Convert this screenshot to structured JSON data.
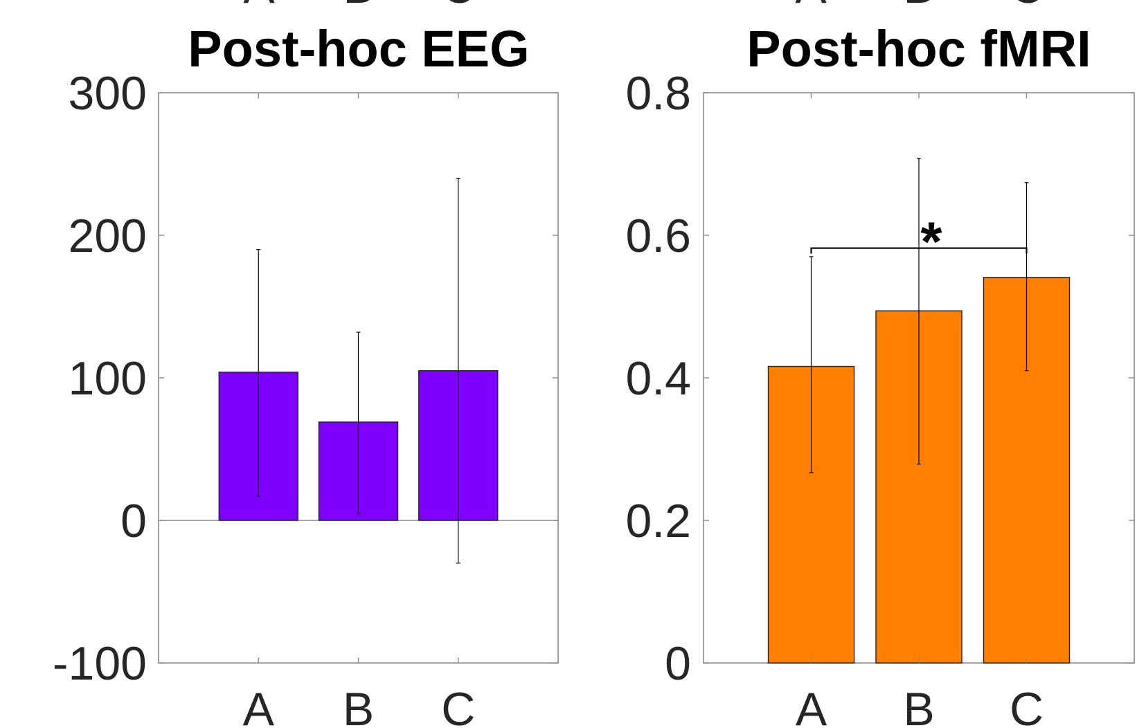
{
  "chart_data": [
    {
      "type": "bar",
      "title": "Post-hoc EEG",
      "top_tick_labels": [
        "A",
        "B",
        "C"
      ],
      "categories": [
        "A",
        "B",
        "C"
      ],
      "values": [
        104,
        69,
        105
      ],
      "error_upper": [
        190,
        132,
        240
      ],
      "error_lower": [
        17,
        5,
        -30
      ],
      "ylim": [
        -100,
        300
      ],
      "yticks": [
        -100,
        0,
        100,
        200,
        300
      ],
      "ytick_labels": [
        "-100",
        "0",
        "100",
        "200",
        "300"
      ],
      "xlim": [
        0,
        4
      ],
      "xlabel": "",
      "ylabel": "",
      "bar_color": "#8000ff",
      "grid": false,
      "zero_line": true,
      "significance": []
    },
    {
      "type": "bar",
      "title": "Post-hoc fMRI",
      "top_tick_labels": [
        "A",
        "B",
        "C"
      ],
      "categories": [
        "A",
        "B",
        "C"
      ],
      "values": [
        0.416,
        0.494,
        0.541
      ],
      "error_upper": [
        0.57,
        0.708,
        0.674
      ],
      "error_lower": [
        0.267,
        0.279,
        0.41
      ],
      "ylim": [
        0,
        0.8
      ],
      "yticks": [
        0,
        0.2,
        0.4,
        0.6,
        0.8
      ],
      "ytick_labels": [
        "0",
        "0.2",
        "0.4",
        "0.6",
        "0.8"
      ],
      "xlim": [
        0,
        4
      ],
      "xlabel": "",
      "ylabel": "",
      "bar_color": "#ff8000",
      "grid": false,
      "zero_line": false,
      "significance": [
        {
          "from": "A",
          "to": "C",
          "level": 0.582,
          "label": "*"
        }
      ]
    }
  ]
}
